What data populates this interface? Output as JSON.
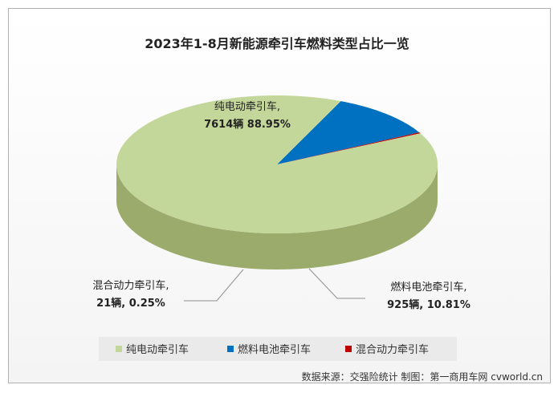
{
  "chart_data": {
    "type": "pie",
    "title": "2023年1-8月新能源牵引车燃料类型占比一览",
    "slices": [
      {
        "name": "纯电动牵引车",
        "value": 7614,
        "percent": 88.95,
        "label_line1": "纯电动牵引车,",
        "label_line2": "7614辆 88.95%",
        "color": "#c4d79b",
        "side_color": "#9aab6c"
      },
      {
        "name": "燃料电池牵引车",
        "value": 925,
        "percent": 10.81,
        "label_line1": "燃料电池牵引车,",
        "label_line2": "925辆, 10.81%",
        "color": "#0070c0",
        "side_color": "#00308a"
      },
      {
        "name": "混合动力牵引车",
        "value": 21,
        "percent": 0.25,
        "label_line1": "混合动力牵引车,",
        "label_line2": "21辆, 0.25%",
        "color": "#c00000",
        "side_color": "#7a0000"
      }
    ],
    "legend_position": "bottom"
  },
  "source_note": "数据来源：交强险统计  制图：第一商用车网 cvworld.cn"
}
